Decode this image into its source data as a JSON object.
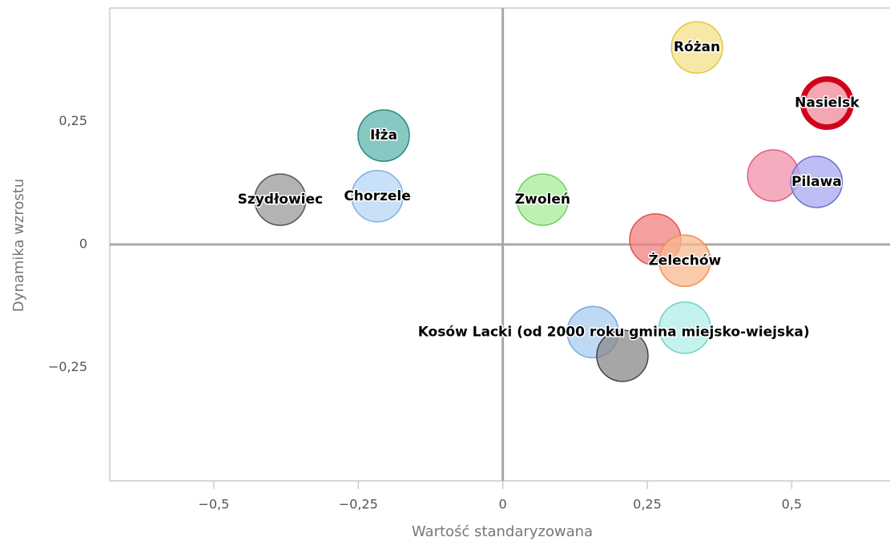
{
  "chart_data": {
    "type": "scatter",
    "xlabel": "Wartość standaryzowana",
    "ylabel": "Dynamika wzrostu",
    "xlim": [
      -0.68,
      0.67
    ],
    "ylim": [
      -0.48,
      0.48
    ],
    "xticks": [
      {
        "value": -0.5,
        "label": "−0,5"
      },
      {
        "value": -0.25,
        "label": "−0,25"
      },
      0,
      {
        "value": 0.25,
        "label": "0,25"
      },
      {
        "value": 0.5,
        "label": "0,5"
      }
    ],
    "yticks": [
      {
        "value": -0.25,
        "label": "−0,25"
      },
      0,
      {
        "value": 0.25,
        "label": "0,25"
      }
    ],
    "points": [
      {
        "label": "Różan",
        "color": "#f5e08a",
        "stroke": "#e3c545",
        "x": 0.336,
        "y": 0.4
      },
      {
        "label": "Nasielsk",
        "color": "#f08a9a",
        "stroke": "#d0021b",
        "x": 0.561,
        "y": 0.287
      },
      {
        "label": "Iłża",
        "color": "#5fb5ad",
        "stroke": "#2a8a80",
        "x": -0.206,
        "y": 0.221
      },
      {
        "label": "Szydłowiec",
        "color": "#999999",
        "stroke": "#555555",
        "x": -0.385,
        "y": 0.091
      },
      {
        "label": "Chorzele",
        "color": "#b5d5f5",
        "stroke": "#80b0e0",
        "x": -0.217,
        "y": 0.098
      },
      {
        "label": "Zwoleń",
        "color": "#a5ee95",
        "stroke": "#70d060",
        "x": 0.069,
        "y": 0.091
      },
      {
        "label": null,
        "color": "#f290a8",
        "stroke": "#e06080",
        "x": 0.468,
        "y": 0.14
      },
      {
        "label": "Pilawa",
        "color": "#a8a8f0",
        "stroke": "#7070d0",
        "x": 0.543,
        "y": 0.127
      },
      {
        "label": null,
        "color": "#f08080",
        "stroke": "#e05050",
        "x": 0.264,
        "y": 0.01
      },
      {
        "label": "Żelechów",
        "color": "#f8b890",
        "stroke": "#f09050",
        "x": 0.315,
        "y": -0.033
      },
      {
        "label": null,
        "color": "#b0eee8",
        "stroke": "#70d0c8",
        "x": 0.315,
        "y": -0.169
      },
      {
        "label": "Kosów Lacki (od 2000 roku gmina miejsko-wiejska)",
        "color": "#a8ccf0",
        "stroke": "#78a8d8",
        "x": 0.156,
        "y": -0.178
      },
      {
        "label": null,
        "color": "#888888",
        "stroke": "#444444",
        "x": 0.207,
        "y": -0.226
      }
    ]
  }
}
